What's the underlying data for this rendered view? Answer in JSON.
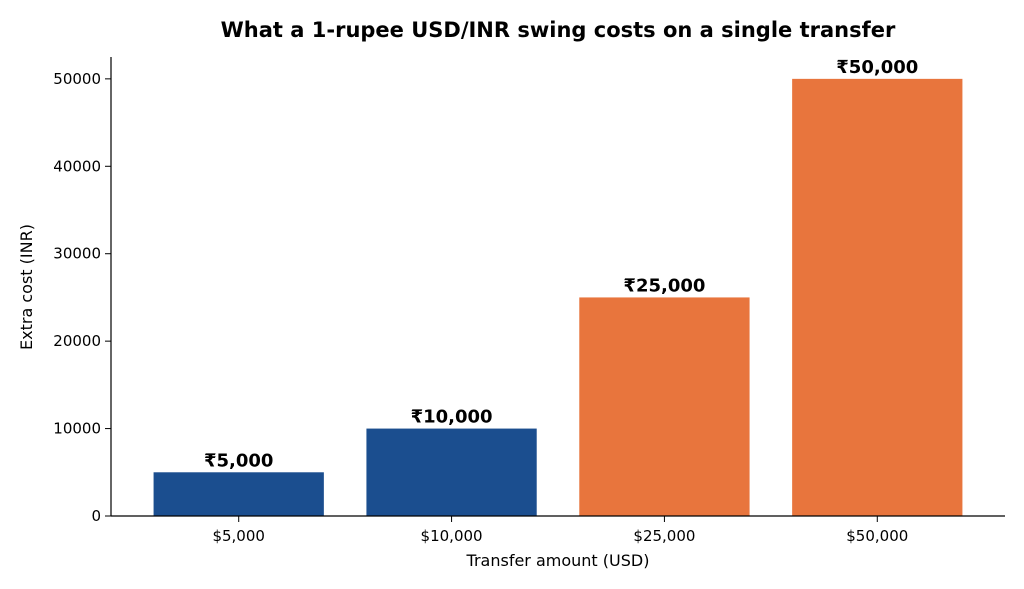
{
  "chart_data": {
    "type": "bar",
    "title": "What a 1-rupee USD/INR swing costs on a single transfer",
    "xlabel": "Transfer amount (USD)",
    "ylabel": "Extra cost (INR)",
    "categories": [
      "$5,000",
      "$10,000",
      "$25,000",
      "$50,000"
    ],
    "values": [
      5000,
      10000,
      25000,
      50000
    ],
    "data_labels": [
      "₹5,000",
      "₹10,000",
      "₹25,000",
      "₹50,000"
    ],
    "bar_colors": [
      "#1b4e8f",
      "#1b4e8f",
      "#e8753d",
      "#e8753d"
    ],
    "ylim": [
      0,
      52500
    ],
    "yticks": [
      0,
      10000,
      20000,
      30000,
      40000,
      50000
    ],
    "ytick_labels": [
      "0",
      "10000",
      "20000",
      "30000",
      "40000",
      "50000"
    ],
    "grid": false
  }
}
